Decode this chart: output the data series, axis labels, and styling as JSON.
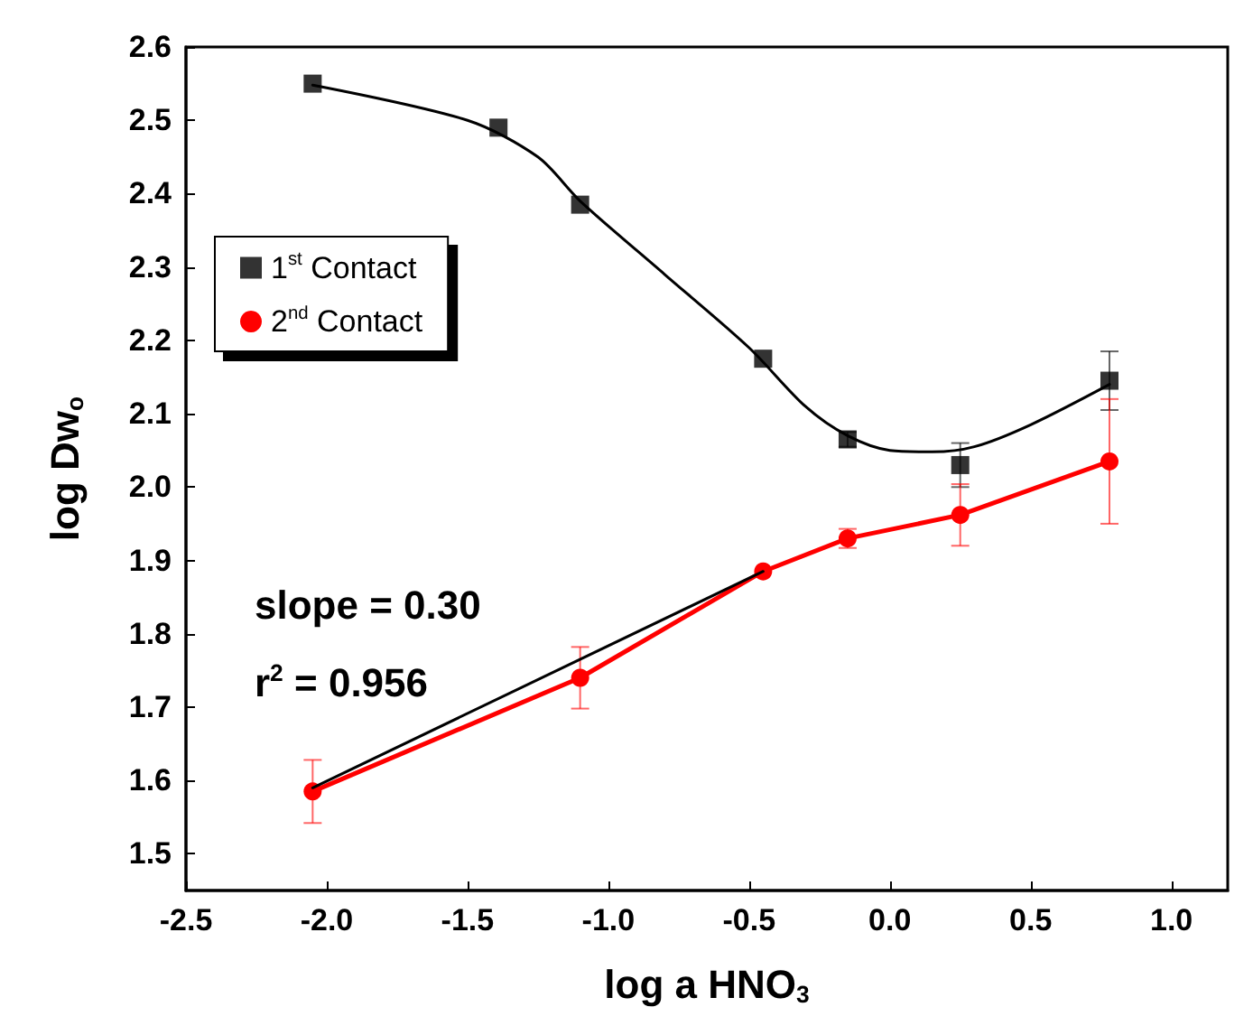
{
  "chart_data": {
    "type": "scatter",
    "xlabel": "log a HNO$_{3}$",
    "ylabel": "log Dw$_{o}$",
    "annotations": [
      "slope = 0.30",
      "r$^{2}$ = 0.956"
    ],
    "xlim": [
      -2.5,
      1.2
    ],
    "ylim": [
      1.45,
      2.6
    ],
    "xticks": [
      {
        "value": -2.5,
        "label": "-2.5"
      },
      {
        "value": -2,
        "label": "-2.0"
      },
      {
        "value": -1.5,
        "label": "-1.5"
      },
      {
        "value": -1,
        "label": "-1.0"
      },
      {
        "value": -0.5,
        "label": "-0.5"
      },
      {
        "value": 0,
        "label": "0.0"
      },
      {
        "value": 0.5,
        "label": "0.5"
      },
      {
        "value": 1,
        "label": "1.0"
      }
    ],
    "yticks": [
      {
        "value": 1.5,
        "label": "1.5"
      },
      {
        "value": 1.6,
        "label": "1.6"
      },
      {
        "value": 1.7,
        "label": "1.7"
      },
      {
        "value": 1.8,
        "label": "1.8"
      },
      {
        "value": 1.9,
        "label": "1.9"
      },
      {
        "value": 2,
        "label": "2.0"
      },
      {
        "value": 2.1,
        "label": "2.1"
      },
      {
        "value": 2.2,
        "label": "2.2"
      },
      {
        "value": 2.3,
        "label": "2.3"
      },
      {
        "value": 2.4,
        "label": "2.4"
      },
      {
        "value": 2.5,
        "label": "2.5"
      },
      {
        "value": 2.6,
        "label": "2.6"
      }
    ],
    "grid": false,
    "legend": "top left",
    "series": [
      {
        "name": "1$^{st}$ Contact",
        "marker": "square",
        "color": "#000000",
        "x": [
          -2.05,
          -1.39,
          -1.1,
          -0.45,
          -0.15,
          0.25,
          0.78
        ],
        "values": [
          2.55,
          2.49,
          2.385,
          2.175,
          2.065,
          2.03,
          2.145
        ],
        "errors": [
          null,
          null,
          null,
          null,
          0.01,
          0.03,
          0.04
        ]
      },
      {
        "type": "line",
        "marker": "none",
        "color": "#000000",
        "x": [
          -2.05,
          -1.5,
          -1.25,
          -1.1,
          -0.8,
          -0.5,
          -0.3,
          -0.15,
          0,
          0.15,
          0.3,
          0.5,
          0.78
        ],
        "values": [
          2.548,
          2.5,
          2.45,
          2.39,
          2.29,
          2.19,
          2.11,
          2.07,
          2.05,
          2.048,
          2.055,
          2.085,
          2.14
        ]
      },
      {
        "name": "2$^{nd}$ Contact",
        "type": "line",
        "marker": "circle",
        "color": "#ff0000",
        "x": [
          -2.05,
          -1.1,
          -0.45,
          -0.15,
          0.25,
          0.78
        ],
        "values": [
          1.585,
          1.74,
          1.885,
          1.93,
          1.962,
          2.035
        ],
        "errors": [
          0.043,
          0.042,
          null,
          0.013,
          0.042,
          0.085
        ]
      },
      {
        "type": "line",
        "marker": "none",
        "color": "#000000",
        "x": [
          -2.05,
          -0.45
        ],
        "values": [
          1.59,
          1.885
        ]
      }
    ]
  }
}
